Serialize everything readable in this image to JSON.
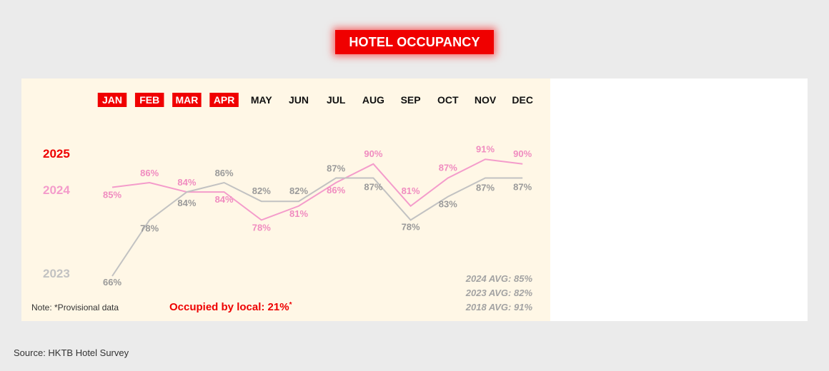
{
  "title": "HOTEL OCCUPANCY",
  "note": "Note: *Provisional data",
  "local_label": "Occupied by local: 21%",
  "local_asterisk": "*",
  "source": "Source: HKTB Hotel Survey",
  "colors": {
    "accent": "#f00000",
    "y2025": "#ee0000",
    "y2024": "#f49ccb",
    "y2023": "#c2c2c2",
    "panel": "#fff7e6",
    "background": "#ebebeb"
  },
  "chart_data": {
    "type": "line",
    "title": "HOTEL OCCUPANCY",
    "categories": [
      "JAN",
      "FEB",
      "MAR",
      "APR",
      "MAY",
      "JUN",
      "JUL",
      "AUG",
      "SEP",
      "OCT",
      "NOV",
      "DEC"
    ],
    "highlighted_months": [
      "JAN",
      "FEB",
      "MAR",
      "APR"
    ],
    "series": [
      {
        "name": "2025",
        "values": [
          null,
          null,
          null,
          null,
          null,
          null,
          null,
          null,
          null,
          null,
          null,
          null
        ]
      },
      {
        "name": "2024",
        "values": [
          85,
          86,
          84,
          84,
          78,
          81,
          86,
          90,
          81,
          87,
          91,
          90
        ],
        "labels": [
          "85%",
          "86%",
          "84%",
          "84%",
          "78%",
          "81%",
          "86%",
          "90%",
          "81%",
          "87%",
          "91%",
          "90%"
        ]
      },
      {
        "name": "2023",
        "values": [
          66,
          78,
          84,
          86,
          82,
          82,
          87,
          87,
          78,
          83,
          87,
          87
        ],
        "labels": [
          "66%",
          "78%",
          "84%",
          "86%",
          "82%",
          "82%",
          "87%",
          "87%",
          "78%",
          "83%",
          "87%",
          "87%"
        ]
      }
    ],
    "averages": [
      "2024 AVG: 85%",
      "2023 AVG: 82%",
      "2018 AVG: 91%"
    ],
    "ylim": [
      62,
      96
    ],
    "grid": false,
    "legend": "left"
  }
}
